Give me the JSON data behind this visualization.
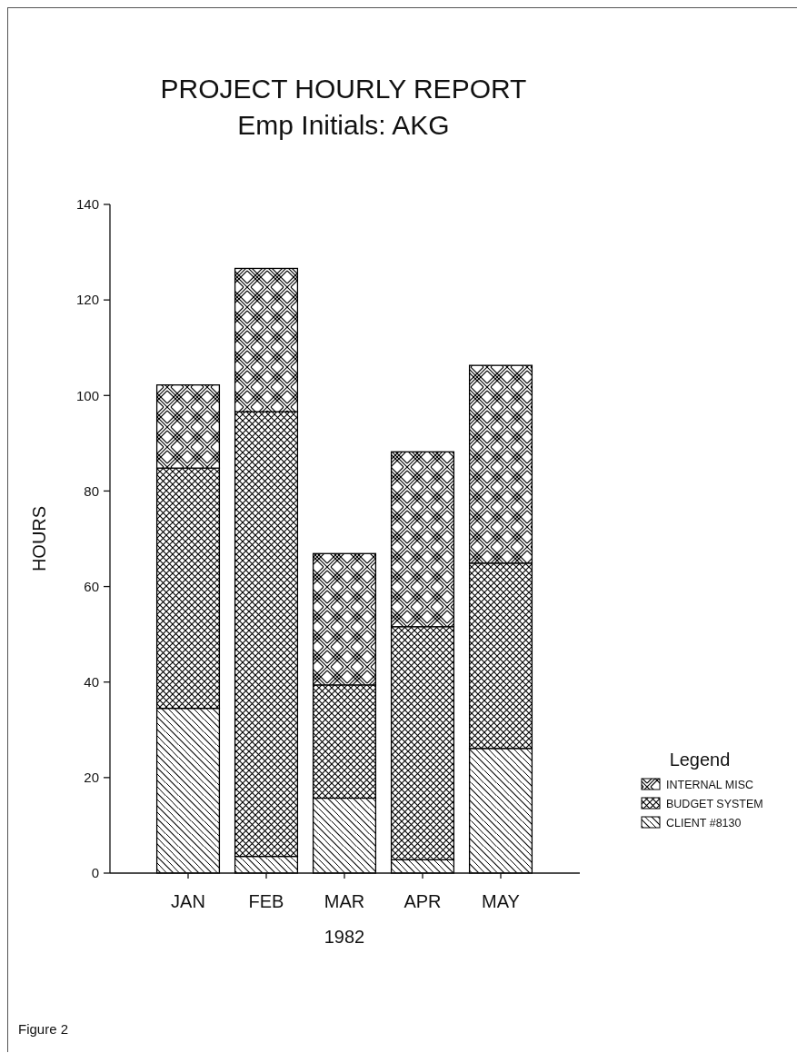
{
  "chart_data": {
    "type": "bar",
    "title": "PROJECT HOURLY REPORT",
    "subtitle": "Emp Initials:  AKG",
    "xlabel": "1982",
    "ylabel": "HOURS",
    "legend_title": "Legend",
    "categories": [
      "JAN",
      "FEB",
      "MAR",
      "APR",
      "MAY"
    ],
    "series": [
      {
        "name": "CLIENT #8130",
        "color": "#000000",
        "values": [
          34.5,
          3.5,
          15.7,
          2.8,
          26.1
        ]
      },
      {
        "name": "BUDGET SYSTEM",
        "color": "#000000",
        "values": [
          50.3,
          93.1,
          23.7,
          48.8,
          38.8
        ]
      },
      {
        "name": "INTERNAL MISC",
        "color": "#000000",
        "values": [
          17.4,
          30,
          27.5,
          36.6,
          41.4
        ]
      }
    ],
    "stacked": true,
    "ylim": [
      0,
      140
    ],
    "yticks": [
      0,
      20,
      40,
      60,
      80,
      100,
      120,
      140
    ],
    "grid": false,
    "legend": "right",
    "annotations": [
      "Figure 2"
    ]
  }
}
